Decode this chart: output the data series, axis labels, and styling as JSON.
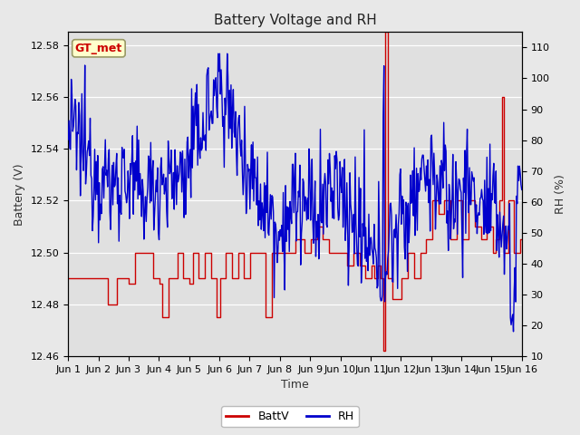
{
  "title": "Battery Voltage and RH",
  "xlabel": "Time",
  "ylabel_left": "Battery (V)",
  "ylabel_right": "RH (%)",
  "ylim_left": [
    12.46,
    12.585
  ],
  "ylim_right": [
    10,
    115
  ],
  "yticks_left": [
    12.46,
    12.48,
    12.5,
    12.52,
    12.54,
    12.56,
    12.58
  ],
  "yticks_right": [
    10,
    20,
    30,
    40,
    50,
    60,
    70,
    80,
    90,
    100,
    110
  ],
  "xtick_labels": [
    "Jun 1",
    "Jun 2",
    "Jun 3",
    "Jun 4",
    "Jun 5",
    "Jun 6",
    "Jun 7",
    "Jun 8",
    "Jun 9",
    "Jun 10",
    "Jun 11",
    "Jun 12",
    "Jun 13",
    "Jun 14",
    "Jun 15",
    "Jun 16"
  ],
  "legend_label_batt": "BattV",
  "legend_label_rh": "RH",
  "batt_color": "#cc0000",
  "rh_color": "#0000cc",
  "annotation_text": "GT_met",
  "fig_bg_color": "#e8e8e8",
  "plot_bg_color": "#e0e0e0",
  "grid_color": "#ffffff",
  "title_fontsize": 11,
  "label_fontsize": 9,
  "tick_fontsize": 8
}
